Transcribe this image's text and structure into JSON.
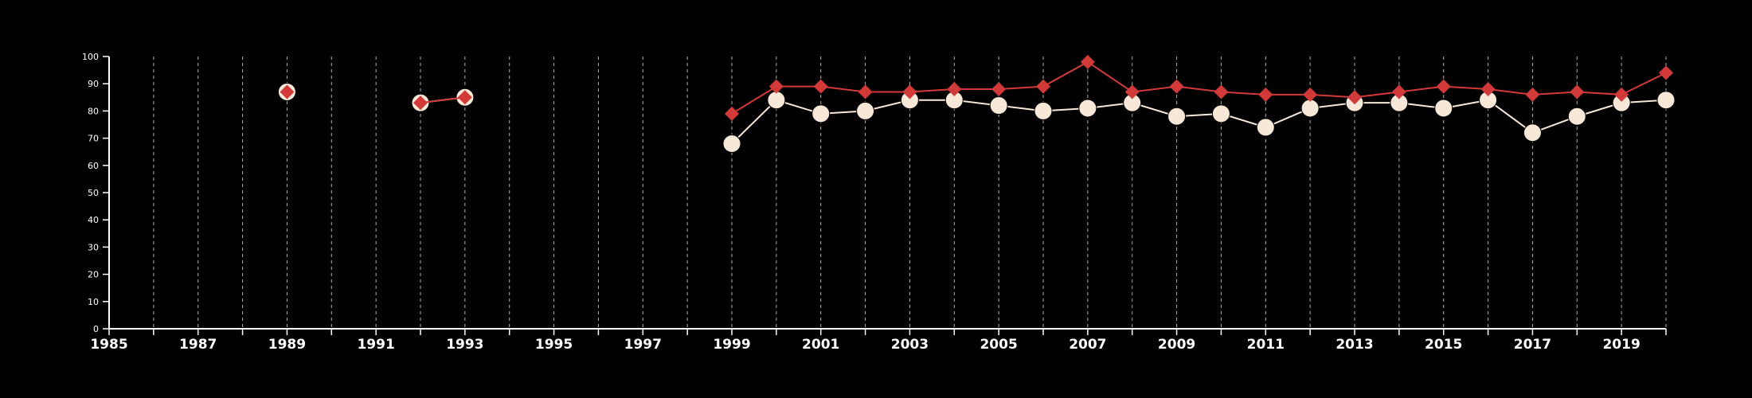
{
  "chart_data": {
    "type": "line",
    "title": "",
    "xlabel": "",
    "ylabel": "",
    "xlim": [
      1985,
      2020
    ],
    "ylim": [
      0,
      100
    ],
    "yticks": [
      0,
      10,
      20,
      30,
      40,
      50,
      60,
      70,
      80,
      90,
      100
    ],
    "xticks_labeled": [
      1985,
      1987,
      1989,
      1991,
      1993,
      1995,
      1997,
      1999,
      2001,
      2003,
      2005,
      2007,
      2009,
      2011,
      2013,
      2015,
      2017,
      2019
    ],
    "grid": "vertical dashed at every year",
    "legend": "none",
    "colors": {
      "background": "#000000",
      "axis": "#ffffff",
      "grid": "#b0b0b0",
      "red_series": "#d23a3a",
      "cream_series": "#f8e8d8"
    },
    "series": [
      {
        "marker": "circle",
        "color": "#f8e8d8",
        "segments": [
          {
            "x": [
              1989
            ],
            "y": [
              87
            ]
          },
          {
            "x": [
              1992,
              1993
            ],
            "y": [
              83,
              85
            ]
          },
          {
            "x": [
              1999,
              2000,
              2001,
              2002,
              2003,
              2004,
              2005,
              2006,
              2007,
              2008,
              2009,
              2010,
              2011,
              2012,
              2013,
              2014,
              2015,
              2016,
              2017,
              2018,
              2019,
              2020
            ],
            "y": [
              68,
              84,
              79,
              80,
              84,
              84,
              82,
              80,
              81,
              83,
              78,
              79,
              74,
              81,
              83,
              83,
              81,
              84,
              72,
              78,
              83,
              84
            ]
          }
        ]
      },
      {
        "marker": "diamond",
        "color": "#d23a3a",
        "segments": [
          {
            "x": [
              1989
            ],
            "y": [
              87
            ]
          },
          {
            "x": [
              1992,
              1993
            ],
            "y": [
              83,
              85
            ]
          },
          {
            "x": [
              1999,
              2000,
              2001,
              2002,
              2003,
              2004,
              2005,
              2006,
              2007,
              2008,
              2009,
              2010,
              2011,
              2012,
              2013,
              2014,
              2015,
              2016,
              2017,
              2018,
              2019,
              2020
            ],
            "y": [
              79,
              89,
              89,
              87,
              87,
              88,
              88,
              89,
              98,
              87,
              89,
              87,
              86,
              86,
              85,
              87,
              89,
              88,
              86,
              87,
              86,
              94
            ]
          }
        ]
      }
    ]
  }
}
